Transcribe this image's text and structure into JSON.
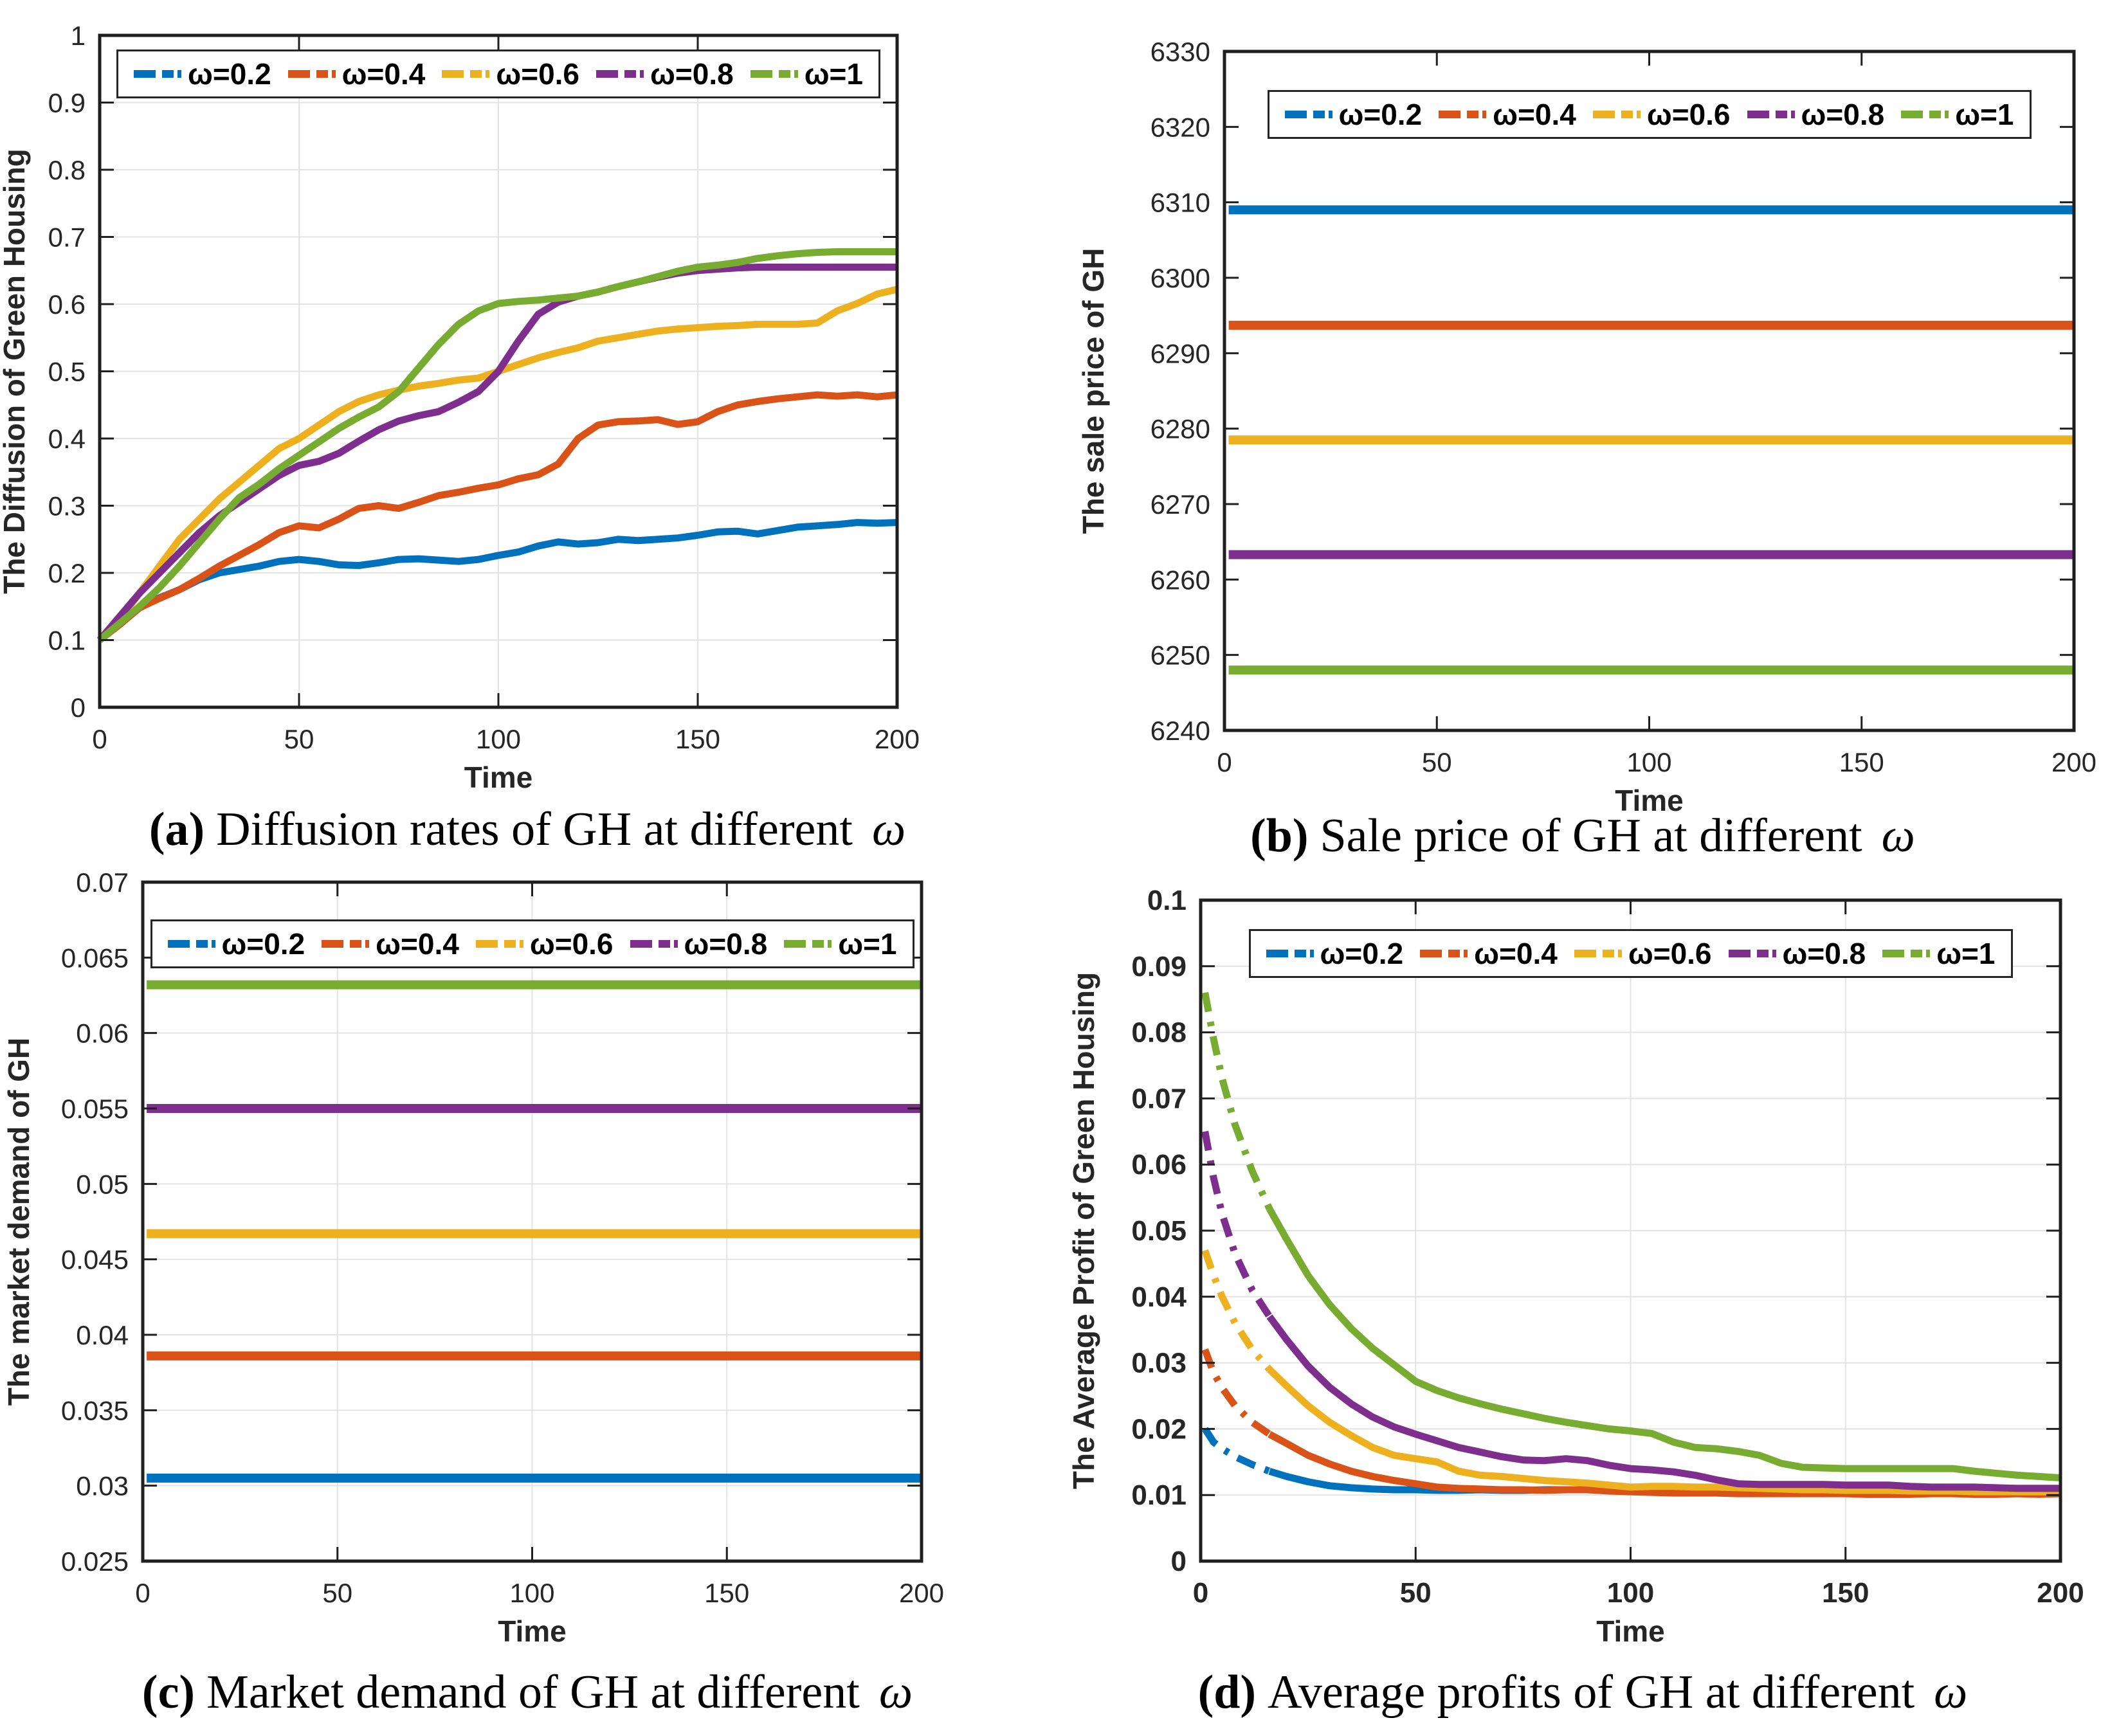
{
  "legend": {
    "labels": [
      "ω=0.2",
      "ω=0.4",
      "ω=0.6",
      "ω=0.8",
      "ω=1"
    ],
    "colors": [
      "#0072BD",
      "#D95319",
      "#EDB120",
      "#7E2F8E",
      "#77AC30"
    ]
  },
  "chart_data": [
    {
      "id": "a",
      "type": "line",
      "caption": {
        "label": "(a)",
        "text": "Diffusion rates of GH at different",
        "symbol": "ω"
      },
      "xlabel": "Time",
      "ylabel": "The Diffusion of Green Housing",
      "xlim": [
        0,
        200
      ],
      "ylim": [
        0,
        1
      ],
      "xticks": [
        0,
        50,
        100,
        150,
        200
      ],
      "xtick_labels": [
        "0",
        "50",
        "100",
        "150",
        "200"
      ],
      "yticks": [
        0,
        0.1,
        0.2,
        0.3,
        0.4,
        0.5,
        0.6,
        0.7,
        0.8,
        0.9,
        1
      ],
      "ytick_labels": [
        "0",
        "0.1",
        "0.2",
        "0.3",
        "0.4",
        "0.5",
        "0.6",
        "0.7",
        "0.8",
        "0.9",
        "1"
      ],
      "grid": true,
      "bold_ticks": false,
      "line_width": 11,
      "x": [
        0,
        5,
        10,
        15,
        20,
        25,
        30,
        35,
        40,
        45,
        50,
        55,
        60,
        65,
        70,
        75,
        80,
        85,
        90,
        95,
        100,
        105,
        110,
        115,
        120,
        125,
        130,
        135,
        140,
        145,
        150,
        155,
        160,
        165,
        170,
        175,
        180,
        185,
        190,
        195,
        200
      ],
      "series": [
        {
          "name": "ω=0.2",
          "color": "#0072BD",
          "y": [
            0.1,
            0.125,
            0.148,
            0.163,
            0.175,
            0.19,
            0.2,
            0.205,
            0.21,
            0.217,
            0.22,
            0.217,
            0.212,
            0.211,
            0.215,
            0.22,
            0.221,
            0.219,
            0.217,
            0.22,
            0.226,
            0.231,
            0.24,
            0.246,
            0.243,
            0.245,
            0.25,
            0.248,
            0.25,
            0.252,
            0.256,
            0.261,
            0.262,
            0.258,
            0.263,
            0.268,
            0.27,
            0.272,
            0.275,
            0.274,
            0.275
          ]
        },
        {
          "name": "ω=0.4",
          "color": "#D95319",
          "y": [
            0.1,
            0.123,
            0.148,
            0.162,
            0.175,
            0.192,
            0.21,
            0.226,
            0.242,
            0.26,
            0.27,
            0.267,
            0.28,
            0.296,
            0.3,
            0.296,
            0.305,
            0.315,
            0.32,
            0.326,
            0.331,
            0.34,
            0.346,
            0.362,
            0.4,
            0.42,
            0.425,
            0.426,
            0.428,
            0.421,
            0.425,
            0.44,
            0.45,
            0.455,
            0.459,
            0.462,
            0.465,
            0.463,
            0.465,
            0.462,
            0.465
          ]
        },
        {
          "name": "ω=0.6",
          "color": "#EDB120",
          "y": [
            0.1,
            0.13,
            0.17,
            0.21,
            0.25,
            0.28,
            0.31,
            0.335,
            0.36,
            0.385,
            0.4,
            0.42,
            0.44,
            0.455,
            0.465,
            0.472,
            0.478,
            0.482,
            0.487,
            0.49,
            0.5,
            0.51,
            0.52,
            0.528,
            0.535,
            0.545,
            0.55,
            0.555,
            0.56,
            0.563,
            0.565,
            0.567,
            0.568,
            0.57,
            0.57,
            0.57,
            0.572,
            0.59,
            0.601,
            0.615,
            0.622
          ]
        },
        {
          "name": "ω=0.8",
          "color": "#7E2F8E",
          "y": [
            0.1,
            0.135,
            0.17,
            0.2,
            0.23,
            0.26,
            0.285,
            0.305,
            0.325,
            0.345,
            0.36,
            0.366,
            0.378,
            0.396,
            0.413,
            0.426,
            0.434,
            0.44,
            0.454,
            0.47,
            0.5,
            0.545,
            0.585,
            0.603,
            0.612,
            0.618,
            0.626,
            0.633,
            0.64,
            0.646,
            0.65,
            0.652,
            0.654,
            0.655,
            0.655,
            0.655,
            0.655,
            0.655,
            0.655,
            0.655,
            0.655
          ]
        },
        {
          "name": "ω=1",
          "color": "#77AC30",
          "y": [
            0.1,
            0.125,
            0.15,
            0.178,
            0.21,
            0.245,
            0.28,
            0.312,
            0.332,
            0.355,
            0.375,
            0.395,
            0.415,
            0.432,
            0.447,
            0.47,
            0.505,
            0.54,
            0.57,
            0.59,
            0.601,
            0.604,
            0.606,
            0.609,
            0.612,
            0.618,
            0.626,
            0.633,
            0.641,
            0.649,
            0.655,
            0.658,
            0.662,
            0.668,
            0.672,
            0.675,
            0.677,
            0.678,
            0.678,
            0.678,
            0.678
          ]
        }
      ]
    },
    {
      "id": "b",
      "type": "line",
      "caption": {
        "label": "(b)",
        "text": "Sale price of GH at different",
        "symbol": "ω"
      },
      "xlabel": "Time",
      "ylabel": "The sale price of GH",
      "xlim": [
        0,
        200
      ],
      "ylim": [
        6240,
        6330
      ],
      "xticks": [
        0,
        50,
        100,
        150,
        200
      ],
      "xtick_labels": [
        "0",
        "50",
        "100",
        "150",
        "200"
      ],
      "yticks": [
        6240,
        6250,
        6260,
        6270,
        6280,
        6290,
        6300,
        6310,
        6320,
        6330
      ],
      "ytick_labels": [
        "6240",
        "6250",
        "6260",
        "6270",
        "6280",
        "6290",
        "6300",
        "6310",
        "6320",
        "6330"
      ],
      "grid": false,
      "bold_ticks": false,
      "line_width": 14,
      "x": [
        1,
        200
      ],
      "series": [
        {
          "name": "ω=0.2",
          "color": "#0072BD",
          "y": [
            6309.0,
            6309.0
          ]
        },
        {
          "name": "ω=0.4",
          "color": "#D95319",
          "y": [
            6293.7,
            6293.7
          ]
        },
        {
          "name": "ω=0.6",
          "color": "#EDB120",
          "y": [
            6278.5,
            6278.5
          ]
        },
        {
          "name": "ω=0.8",
          "color": "#7E2F8E",
          "y": [
            6263.3,
            6263.3
          ]
        },
        {
          "name": "ω=1",
          "color": "#77AC30",
          "y": [
            6248.0,
            6248.0
          ]
        }
      ]
    },
    {
      "id": "c",
      "type": "line",
      "caption": {
        "label": "(c)",
        "text": "Market demand of GH at different",
        "symbol": "ω"
      },
      "xlabel": "Time",
      "ylabel": "The market demand of GH",
      "xlim": [
        0,
        200
      ],
      "ylim": [
        0.025,
        0.07
      ],
      "xticks": [
        0,
        50,
        100,
        150,
        200
      ],
      "xtick_labels": [
        "0",
        "50",
        "100",
        "150",
        "200"
      ],
      "yticks": [
        0.025,
        0.03,
        0.035,
        0.04,
        0.045,
        0.05,
        0.055,
        0.06,
        0.065,
        0.07
      ],
      "ytick_labels": [
        "0.025",
        "0.03",
        "0.035",
        "0.04",
        "0.045",
        "0.05",
        "0.055",
        "0.06",
        "0.065",
        "0.07"
      ],
      "grid": true,
      "bold_ticks": false,
      "line_width": 14,
      "x": [
        1,
        200
      ],
      "series": [
        {
          "name": "ω=0.2",
          "color": "#0072BD",
          "y": [
            0.0305,
            0.0305
          ]
        },
        {
          "name": "ω=0.4",
          "color": "#D95319",
          "y": [
            0.0386,
            0.0386
          ]
        },
        {
          "name": "ω=0.6",
          "color": "#EDB120",
          "y": [
            0.0467,
            0.0467
          ]
        },
        {
          "name": "ω=0.8",
          "color": "#7E2F8E",
          "y": [
            0.055,
            0.055
          ]
        },
        {
          "name": "ω=1",
          "color": "#77AC30",
          "y": [
            0.0632,
            0.0632
          ]
        }
      ]
    },
    {
      "id": "d",
      "type": "line",
      "caption": {
        "label": "(d)",
        "text": "Average profits of GH at different",
        "symbol": "ω"
      },
      "xlabel": "Time",
      "ylabel": "The Average Profit of Green Housing",
      "xlim": [
        0,
        200
      ],
      "ylim": [
        0,
        0.1
      ],
      "xticks": [
        0,
        50,
        100,
        150,
        200
      ],
      "xtick_labels": [
        "0",
        "50",
        "100",
        "150",
        "200"
      ],
      "yticks": [
        0,
        0.01,
        0.02,
        0.03,
        0.04,
        0.05,
        0.06,
        0.07,
        0.08,
        0.09,
        0.1
      ],
      "ytick_labels": [
        "0",
        "0.01",
        "0.02",
        "0.03",
        "0.04",
        "0.05",
        "0.06",
        "0.07",
        "0.08",
        "0.09",
        "0.1"
      ],
      "grid": true,
      "bold_ticks": true,
      "line_width": 11,
      "dash_head_until": 14,
      "x": [
        1,
        3,
        5,
        8,
        12,
        16,
        20,
        25,
        30,
        35,
        40,
        45,
        50,
        55,
        60,
        65,
        70,
        75,
        80,
        85,
        90,
        95,
        100,
        105,
        110,
        115,
        120,
        125,
        130,
        135,
        140,
        145,
        150,
        155,
        160,
        165,
        170,
        175,
        180,
        185,
        190,
        195,
        200
      ],
      "series": [
        {
          "name": "ω=0.2",
          "color": "#0072BD",
          "y": [
            0.02,
            0.018,
            0.017,
            0.0158,
            0.0146,
            0.0136,
            0.0128,
            0.012,
            0.0114,
            0.0111,
            0.0109,
            0.0108,
            0.0108,
            0.0107,
            0.0107,
            0.0108,
            0.0107,
            0.0107,
            0.0108,
            0.0108,
            0.0108,
            0.0108,
            0.0107,
            0.0106,
            0.0105,
            0.0105,
            0.0105,
            0.0106,
            0.0107,
            0.0108,
            0.0108,
            0.0108,
            0.0108,
            0.0108,
            0.0108,
            0.0108,
            0.0108,
            0.0109,
            0.0109,
            0.011,
            0.011,
            0.011,
            0.011
          ]
        },
        {
          "name": "ω=0.4",
          "color": "#D95319",
          "y": [
            0.032,
            0.0285,
            0.0262,
            0.0235,
            0.021,
            0.0192,
            0.0178,
            0.016,
            0.0147,
            0.0136,
            0.0128,
            0.0122,
            0.0117,
            0.0112,
            0.011,
            0.0109,
            0.0108,
            0.0108,
            0.0107,
            0.0108,
            0.0108,
            0.0106,
            0.0105,
            0.0104,
            0.0103,
            0.0103,
            0.0103,
            0.0102,
            0.0102,
            0.0102,
            0.0102,
            0.0102,
            0.0102,
            0.0101,
            0.0101,
            0.0101,
            0.0102,
            0.0102,
            0.0101,
            0.0101,
            0.0102,
            0.0101,
            0.0102
          ]
        },
        {
          "name": "ω=0.6",
          "color": "#EDB120",
          "y": [
            0.047,
            0.0432,
            0.04,
            0.036,
            0.032,
            0.029,
            0.0265,
            0.0235,
            0.021,
            0.019,
            0.0172,
            0.016,
            0.0155,
            0.015,
            0.0136,
            0.013,
            0.0128,
            0.0125,
            0.0122,
            0.012,
            0.0118,
            0.0115,
            0.0112,
            0.0113,
            0.0113,
            0.0112,
            0.0112,
            0.0111,
            0.011,
            0.0109,
            0.0108,
            0.0108,
            0.0107,
            0.0107,
            0.0107,
            0.0106,
            0.0106,
            0.0106,
            0.0105,
            0.0105,
            0.0105,
            0.0105,
            0.0105
          ]
        },
        {
          "name": "ω=0.8",
          "color": "#7E2F8E",
          "y": [
            0.065,
            0.058,
            0.0525,
            0.0465,
            0.041,
            0.037,
            0.0335,
            0.0295,
            0.0263,
            0.0238,
            0.0218,
            0.0203,
            0.0192,
            0.0182,
            0.0172,
            0.0165,
            0.0158,
            0.0153,
            0.0152,
            0.0155,
            0.0152,
            0.0145,
            0.014,
            0.0138,
            0.0135,
            0.013,
            0.0123,
            0.0117,
            0.0116,
            0.0116,
            0.0116,
            0.0116,
            0.0115,
            0.0115,
            0.0115,
            0.0113,
            0.0112,
            0.0112,
            0.0112,
            0.0111,
            0.011,
            0.011,
            0.011
          ]
        },
        {
          "name": "ω=1",
          "color": "#77AC30",
          "y": [
            0.086,
            0.079,
            0.073,
            0.066,
            0.059,
            0.0533,
            0.0487,
            0.0432,
            0.0388,
            0.0352,
            0.0322,
            0.0297,
            0.0272,
            0.0258,
            0.0247,
            0.0238,
            0.023,
            0.0223,
            0.0216,
            0.021,
            0.0205,
            0.02,
            0.0197,
            0.0193,
            0.018,
            0.0172,
            0.017,
            0.0166,
            0.016,
            0.0148,
            0.0142,
            0.0141,
            0.014,
            0.014,
            0.014,
            0.014,
            0.014,
            0.014,
            0.0136,
            0.0133,
            0.013,
            0.0128,
            0.0126
          ]
        }
      ]
    }
  ]
}
